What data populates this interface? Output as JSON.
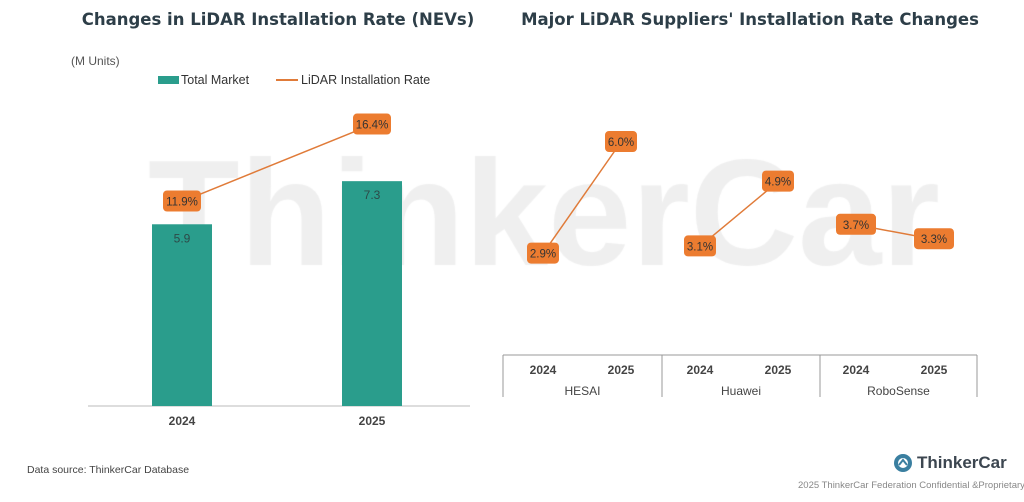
{
  "watermark": "ThinkerCar",
  "footer": {
    "source": "Data source: ThinkerCar Database",
    "logo_text": "ThinkerCar",
    "copyright": "2025 ThinkerCar Federation Confidential &Proprietary"
  },
  "colors": {
    "bar": "#2a9d8c",
    "line": "#e07b39",
    "label_bg": "#ec7c30"
  },
  "chart_data": [
    {
      "type": "bar+line",
      "title": "Changes in LiDAR Installation Rate (NEVs)",
      "unit_label": "(M Units)",
      "legend_position": "top",
      "categories": [
        "2024",
        "2025"
      ],
      "series": [
        {
          "name": "Total Market",
          "type": "bar",
          "values": [
            5.9,
            7.3
          ],
          "labels": [
            "5.9",
            "7.3"
          ]
        },
        {
          "name": "LiDAR Installation Rate",
          "type": "line",
          "values": [
            11.9,
            16.4
          ],
          "labels": [
            "11.9%",
            "16.4%"
          ]
        }
      ],
      "grid": false
    },
    {
      "type": "line",
      "title": "Major LiDAR Suppliers' Installation Rate Changes",
      "groups": [
        {
          "name": "HESAI",
          "categories": [
            "2024",
            "2025"
          ],
          "values": [
            2.9,
            6.0
          ],
          "labels": [
            "2.9%",
            "6.0%"
          ]
        },
        {
          "name": "Huawei",
          "categories": [
            "2024",
            "2025"
          ],
          "values": [
            3.1,
            4.9
          ],
          "labels": [
            "3.1%",
            "4.9%"
          ]
        },
        {
          "name": "RoboSense",
          "categories": [
            "2024",
            "2025"
          ],
          "values": [
            3.7,
            3.3
          ],
          "labels": [
            "3.7%",
            "3.3%"
          ]
        }
      ],
      "grid": false
    }
  ]
}
